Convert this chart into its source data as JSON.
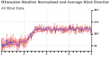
{
  "title": "Milwaukee Weather Normalized and Average Wind Direction (Last 24 Hours)",
  "subtitle": "All Wind Data",
  "bg_color": "#ffffff",
  "plot_bg_color": "#ffffff",
  "grid_color": "#bbbbbb",
  "n_points": 144,
  "ylim": [
    50,
    360
  ],
  "ytick_values": [
    90,
    180,
    270,
    360
  ],
  "ytick_labels": [
    "",
    "",
    "",
    ""
  ],
  "red_color": "#dd0000",
  "blue_color": "#3333cc",
  "title_fontsize": 3.8,
  "tick_fontsize": 3.0,
  "seed": 12
}
